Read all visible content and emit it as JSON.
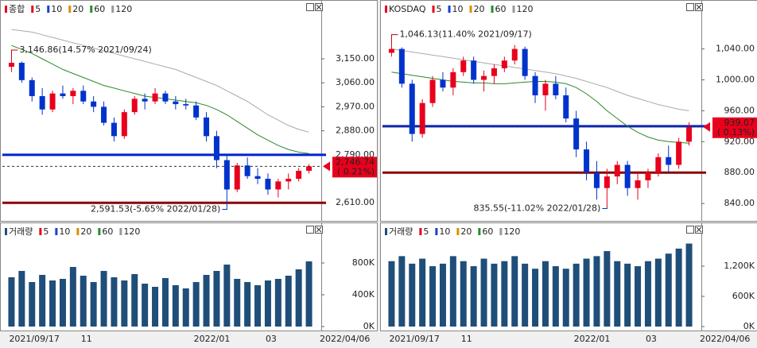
{
  "chart_data": [
    {
      "type": "candlestick",
      "legend": [
        {
          "label": "종합",
          "color": "#e8001c"
        },
        {
          "label": "5",
          "color": "#e8001c"
        },
        {
          "label": "10",
          "color": "#1a3fd0"
        },
        {
          "label": "20",
          "color": "#d89000"
        },
        {
          "label": "60",
          "color": "#2a8a2a"
        },
        {
          "label": "120",
          "color": "#999999"
        }
      ],
      "open": [
        3120,
        3135,
        3070,
        3010,
        2960,
        3020,
        3010,
        3030,
        2990,
        2970,
        2910,
        2860,
        2950,
        3000,
        2990,
        3020,
        2990,
        2980,
        2975,
        2930,
        2860,
        2770,
        2660,
        2750,
        2710,
        2700,
        2660,
        2690,
        2700,
        2730
      ],
      "high": [
        3146.86,
        3140,
        3080,
        3040,
        3030,
        3050,
        3040,
        3050,
        3010,
        2990,
        2930,
        2960,
        3010,
        3020,
        3040,
        3030,
        3010,
        3000,
        2990,
        2950,
        2880,
        2790,
        2760,
        2780,
        2740,
        2720,
        2700,
        2720,
        2740,
        2755
      ],
      "low": [
        3100,
        3060,
        2990,
        2940,
        2950,
        3000,
        2980,
        2980,
        2950,
        2900,
        2840,
        2850,
        2940,
        2960,
        2980,
        2980,
        2960,
        2960,
        2920,
        2840,
        2740,
        2591.53,
        2650,
        2700,
        2680,
        2640,
        2630,
        2660,
        2690,
        2720
      ],
      "close": [
        3135,
        3070,
        3010,
        2960,
        3020,
        3010,
        3030,
        2990,
        2970,
        2910,
        2860,
        2950,
        3000,
        2990,
        3020,
        2990,
        2980,
        2975,
        2930,
        2860,
        2770,
        2660,
        2750,
        2710,
        2700,
        2660,
        2690,
        2700,
        2730,
        2746.74
      ],
      "up_color": "#e8001c",
      "down_color": "#0033cc",
      "ma_lines": [
        {
          "color": "#2a8a2a",
          "values": [
            3200,
            3185,
            3170,
            3150,
            3130,
            3110,
            3095,
            3080,
            3065,
            3050,
            3040,
            3030,
            3020,
            3010,
            3005,
            3000,
            2995,
            2990,
            2985,
            2975,
            2960,
            2940,
            2915,
            2890,
            2865,
            2845,
            2825,
            2810,
            2800,
            2795
          ]
        },
        {
          "color": "#aaaaaa",
          "values": [
            3260,
            3255,
            3250,
            3240,
            3230,
            3220,
            3210,
            3200,
            3190,
            3180,
            3170,
            3160,
            3150,
            3140,
            3130,
            3120,
            3110,
            3095,
            3080,
            3065,
            3050,
            3030,
            3010,
            2990,
            2965,
            2940,
            2920,
            2900,
            2885,
            2875
          ]
        }
      ],
      "levels": [
        {
          "value": 2790,
          "color": "#0022cc"
        },
        {
          "value": 2610,
          "color": "#8b0000"
        }
      ],
      "max_label": "3,146.86(14.57% 2021/09/24)",
      "min_label": "2,591.53(-5.65% 2022/01/28)",
      "last_label": [
        "2,746.74",
        "( 0.21%)"
      ],
      "ylim": [
        2572,
        3293
      ],
      "yticks": [
        {
          "value": 2610,
          "label": "2,610.00"
        },
        {
          "value": 2790,
          "label": "2,790.00"
        },
        {
          "value": 2880,
          "label": "2,880.00"
        },
        {
          "value": 2970,
          "label": "2,970.00"
        },
        {
          "value": 3060,
          "label": "3,060.00"
        },
        {
          "value": 3150,
          "label": "3,150.00"
        }
      ]
    },
    {
      "type": "bar",
      "legend": [
        {
          "label": "거래량",
          "color": "#1f4e79"
        },
        {
          "label": "5",
          "color": "#e8001c"
        },
        {
          "label": "10",
          "color": "#1a3fd0"
        },
        {
          "label": "20",
          "color": "#d89000"
        },
        {
          "label": "60",
          "color": "#2a8a2a"
        },
        {
          "label": "120",
          "color": "#999999"
        }
      ],
      "categories": [
        "2021/09/17",
        null,
        null,
        null,
        null,
        null,
        null,
        "11",
        null,
        null,
        null,
        null,
        null,
        null,
        null,
        null,
        null,
        null,
        "2022/01",
        null,
        null,
        null,
        null,
        null,
        null,
        "03",
        null,
        null,
        null,
        null
      ],
      "values": [
        620000,
        700000,
        560000,
        650000,
        580000,
        600000,
        750000,
        640000,
        560000,
        700000,
        620000,
        580000,
        660000,
        540000,
        500000,
        610000,
        520000,
        480000,
        560000,
        650000,
        700000,
        780000,
        600000,
        560000,
        520000,
        580000,
        600000,
        640000,
        720000,
        820000
      ],
      "color": "#1f4e79",
      "x_end_label": "2022/04/06",
      "ylim": [
        0,
        1130000
      ],
      "yticks": [
        {
          "value": 0,
          "label": "0K"
        },
        {
          "value": 400000,
          "label": "400K"
        },
        {
          "value": 800000,
          "label": "800K"
        }
      ]
    },
    {
      "type": "candlestick",
      "legend": [
        {
          "label": "KOSDAQ",
          "color": "#e8001c"
        },
        {
          "label": "5",
          "color": "#e8001c"
        },
        {
          "label": "10",
          "color": "#1a3fd0"
        },
        {
          "label": "20",
          "color": "#d89000"
        },
        {
          "label": "60",
          "color": "#2a8a2a"
        },
        {
          "label": "120",
          "color": "#999999"
        }
      ],
      "open": [
        1035,
        1040,
        995,
        930,
        970,
        1000,
        990,
        1010,
        1025,
        1000,
        1005,
        1015,
        1025,
        1040,
        1005,
        980,
        995,
        980,
        950,
        910,
        880,
        860,
        875,
        890,
        860,
        870,
        880,
        900,
        890,
        920
      ],
      "high": [
        1046.13,
        1042,
        1000,
        975,
        1005,
        1010,
        1015,
        1030,
        1030,
        1012,
        1020,
        1030,
        1045,
        1043,
        1010,
        1000,
        1005,
        990,
        960,
        920,
        895,
        885,
        895,
        895,
        880,
        885,
        905,
        915,
        925,
        945
      ],
      "low": [
        1030,
        990,
        920,
        925,
        965,
        985,
        980,
        1005,
        995,
        985,
        995,
        1010,
        1020,
        1000,
        970,
        960,
        975,
        945,
        900,
        870,
        845,
        835.55,
        865,
        850,
        845,
        860,
        875,
        880,
        885,
        915
      ],
      "close": [
        1040,
        995,
        930,
        970,
        1000,
        990,
        1010,
        1025,
        1000,
        1005,
        1015,
        1025,
        1040,
        1005,
        980,
        995,
        980,
        950,
        910,
        880,
        860,
        875,
        890,
        860,
        870,
        880,
        900,
        890,
        920,
        939.07
      ],
      "up_color": "#e8001c",
      "down_color": "#0033cc",
      "ma_lines": [
        {
          "color": "#2a8a2a",
          "values": [
            1010,
            1008,
            1006,
            1004,
            1002,
            1000,
            998,
            997,
            996,
            996,
            995,
            995,
            996,
            997,
            998,
            998,
            997,
            995,
            990,
            982,
            972,
            960,
            950,
            940,
            932,
            926,
            922,
            920,
            919,
            918
          ]
        },
        {
          "color": "#aaaaaa",
          "values": [
            1040,
            1038,
            1036,
            1034,
            1032,
            1030,
            1028,
            1026,
            1024,
            1022,
            1020,
            1018,
            1016,
            1014,
            1012,
            1010,
            1008,
            1005,
            1002,
            998,
            994,
            990,
            985,
            980,
            976,
            972,
            968,
            965,
            962,
            960
          ]
        }
      ],
      "levels": [
        {
          "value": 940,
          "color": "#0022cc"
        },
        {
          "value": 880,
          "color": "#8b0000"
        }
      ],
      "max_label": "1,046.13(11.40% 2021/09/17)",
      "min_label": "835.55(-11.02% 2022/01/28)",
      "last_label": [
        "939.07",
        "( 0.13%)"
      ],
      "ylim": [
        827.8,
        1076.6
      ],
      "yticks": [
        {
          "value": 840,
          "label": "840.00"
        },
        {
          "value": 880,
          "label": "880.00"
        },
        {
          "value": 920,
          "label": "920.00"
        },
        {
          "value": 960,
          "label": "960.00"
        },
        {
          "value": 1000,
          "label": "1,000.00"
        },
        {
          "value": 1040,
          "label": "1,040.00"
        }
      ]
    },
    {
      "type": "bar",
      "legend": [
        {
          "label": "거래량",
          "color": "#1f4e79"
        },
        {
          "label": "5",
          "color": "#e8001c"
        },
        {
          "label": "10",
          "color": "#1a3fd0"
        },
        {
          "label": "20",
          "color": "#d89000"
        },
        {
          "label": "60",
          "color": "#2a8a2a"
        },
        {
          "label": "120",
          "color": "#999999"
        }
      ],
      "categories": [
        "2021/09/17",
        null,
        null,
        null,
        null,
        null,
        null,
        "11",
        null,
        null,
        null,
        null,
        null,
        null,
        null,
        null,
        null,
        null,
        "2022/01",
        null,
        null,
        null,
        null,
        null,
        null,
        "03",
        null,
        null,
        null,
        null
      ],
      "values": [
        1300000,
        1400000,
        1250000,
        1350000,
        1200000,
        1250000,
        1400000,
        1300000,
        1200000,
        1350000,
        1250000,
        1300000,
        1400000,
        1250000,
        1150000,
        1300000,
        1200000,
        1150000,
        1250000,
        1350000,
        1400000,
        1500000,
        1300000,
        1250000,
        1200000,
        1300000,
        1350000,
        1450000,
        1550000,
        1650000
      ],
      "color": "#1f4e79",
      "x_end_label": "2022/04/06",
      "ylim": [
        0,
        1785000
      ],
      "yticks": [
        {
          "value": 0,
          "label": "0K"
        },
        {
          "value": 600000,
          "label": "600K"
        },
        {
          "value": 1200000,
          "label": "1,200K"
        }
      ]
    }
  ]
}
